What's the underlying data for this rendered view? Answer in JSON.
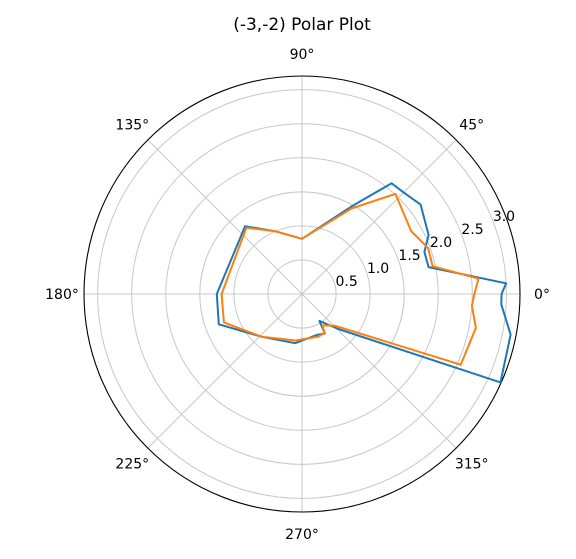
{
  "chart_data": {
    "type": "line",
    "projection": "polar",
    "title": "(-3,-2) Polar Plot",
    "theta_unit": "degrees",
    "theta_ticks": [
      0,
      45,
      90,
      135,
      180,
      225,
      270,
      315
    ],
    "theta_tick_labels": [
      "0°",
      "45°",
      "90°",
      "135°",
      "180°",
      "225°",
      "270°",
      "315°"
    ],
    "r_ticks": [
      0.5,
      1.0,
      1.5,
      2.0,
      2.5,
      3.0
    ],
    "r_tick_labels": [
      "0.5",
      "1.0",
      "1.5",
      "2.0",
      "2.5",
      "3.0"
    ],
    "rlim": [
      0,
      3.2
    ],
    "grid": true,
    "legend": "none",
    "series": [
      {
        "color": "#1f77b4",
        "theta": [
          0,
          3,
          12,
          19,
          25,
          37,
          45,
          51,
          60,
          90,
          113,
          130,
          180,
          200,
          227,
          262,
          291,
          300,
          303,
          316,
          336,
          349,
          357,
          0
        ],
        "r": [
          2.93,
          3.0,
          1.9,
          1.9,
          2.05,
          2.18,
          2.11,
          2.09,
          1.5,
          0.81,
          1.0,
          1.3,
          1.25,
          1.3,
          0.86,
          0.73,
          0.64,
          0.67,
          0.47,
          0.74,
          3.19,
          3.12,
          2.93,
          2.93
        ]
      },
      {
        "color": "#ff7f0e",
        "theta": [
          0,
          5,
          12,
          20,
          30,
          47,
          60,
          90,
          113,
          130,
          180,
          200,
          227,
          262,
          291,
          300,
          303,
          316,
          336,
          349,
          356,
          0
        ],
        "r": [
          2.53,
          2.6,
          1.96,
          1.97,
          1.85,
          2.01,
          1.45,
          0.81,
          1.0,
          1.27,
          1.18,
          1.22,
          0.86,
          0.69,
          0.67,
          0.66,
          0.55,
          0.67,
          2.55,
          2.6,
          2.5,
          2.53
        ]
      }
    ]
  }
}
